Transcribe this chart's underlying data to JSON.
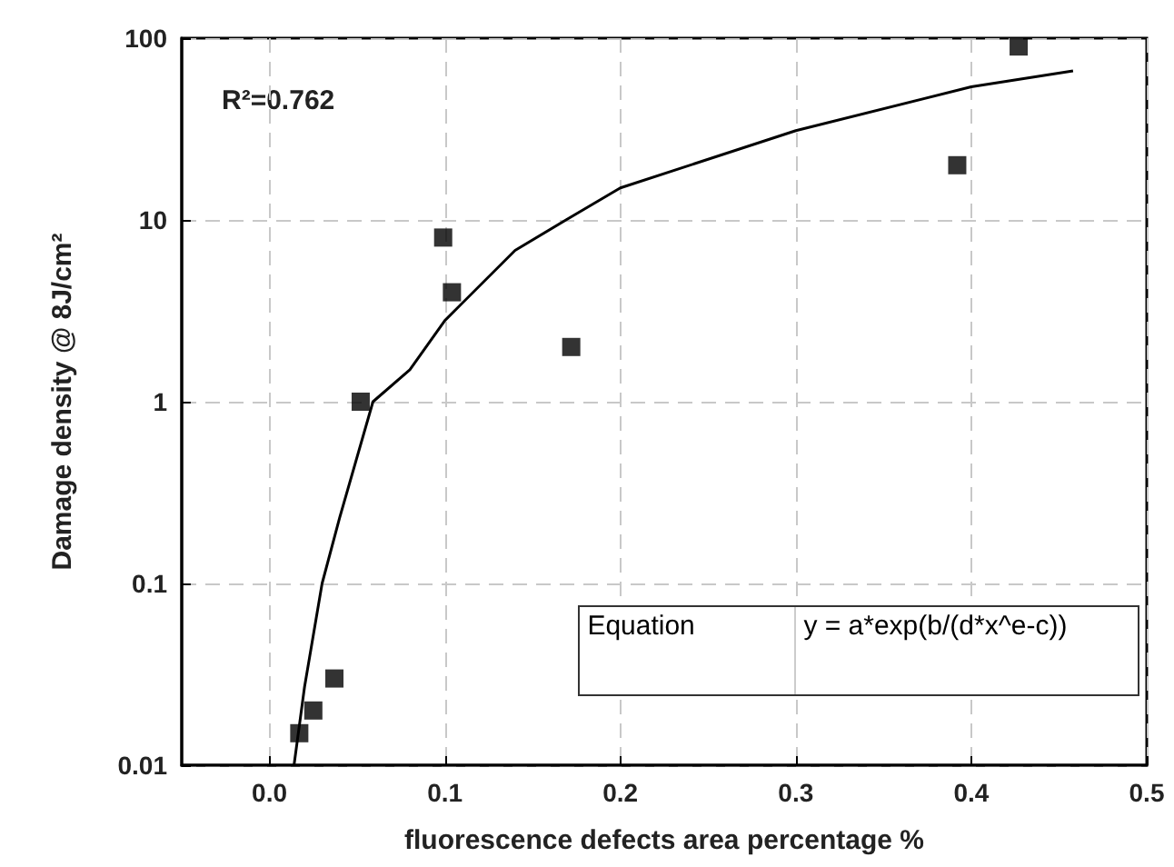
{
  "chart_data": {
    "type": "scatter",
    "xlabel": "fluorescence defects area percentage %",
    "ylabel": "Damage density @ 8J/cm²",
    "log": "y",
    "grid": true,
    "marker": "square",
    "xlim": [
      -0.05,
      0.5
    ],
    "xticks": [
      {
        "value": 0,
        "label": "0.0"
      },
      0.1,
      0.2,
      0.3,
      0.4,
      0.5
    ],
    "ylim": [
      0.01,
      100
    ],
    "yticks": [
      0.01,
      0.1,
      1,
      10,
      100
    ],
    "annotations": [
      "R²=0.762",
      "Equation",
      "y = a*exp(b/(d*x^e-c))"
    ],
    "series": [
      {
        "color": "#000000",
        "x": [
          0.017,
          0.025,
          0.037,
          0.052,
          0.099,
          0.104,
          0.172,
          0.392,
          0.427
        ],
        "values": [
          0.015,
          0.02,
          0.03,
          1,
          8,
          4,
          2,
          20,
          90
        ]
      },
      {
        "type": "line",
        "color": "#000000",
        "marker": "none",
        "line_style": "solid",
        "x": [
          0.014,
          0.02,
          0.03,
          0.04,
          0.059,
          0.08,
          0.1,
          0.14,
          0.169,
          0.2,
          0.3,
          0.4,
          0.458
        ],
        "values": [
          0.01,
          0.027,
          0.1,
          0.23,
          1,
          1.5,
          2.8,
          6.8,
          10,
          15,
          31,
          54,
          66
        ]
      }
    ]
  }
}
